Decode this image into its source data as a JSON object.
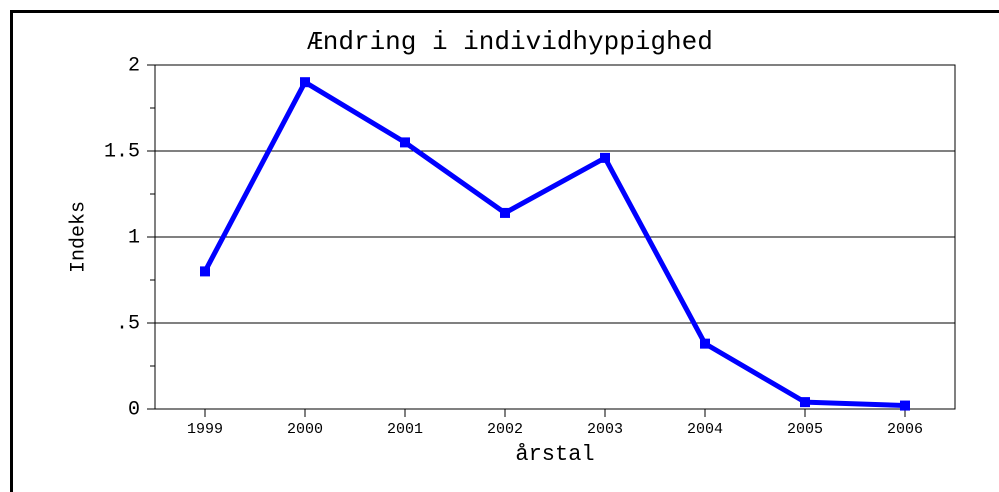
{
  "chart_data": {
    "type": "line",
    "title": "Ændring i individhyppighed",
    "x_label": "årstal",
    "y_label": "Indeks",
    "x": [
      1999,
      2000,
      2001,
      2002,
      2003,
      2004,
      2005,
      2006
    ],
    "series": [
      {
        "name": "Indeks",
        "color": "#0000ff",
        "values": [
          0.8,
          1.9,
          1.55,
          1.14,
          1.46,
          0.38,
          0.04,
          0.02
        ]
      }
    ],
    "xlim": [
      1998.5,
      2006.5
    ],
    "xticks": [
      1999,
      2000,
      2001,
      2002,
      2003,
      2004,
      2005,
      2006
    ],
    "ylim": [
      0,
      2
    ],
    "yticks": [
      0,
      {
        "value": 0.5,
        "label": ".5"
      },
      1,
      1.5,
      2
    ],
    "yminorticks": [
      0.25,
      0.75,
      1.25,
      1.75
    ],
    "grid": true
  }
}
